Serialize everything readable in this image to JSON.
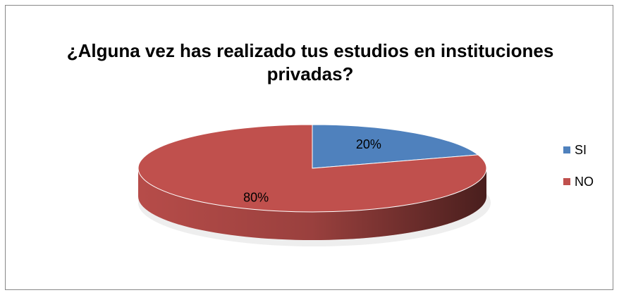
{
  "chart_data": {
    "type": "pie",
    "title": "¿Alguna vez has realizado tus estudios en instituciones privadas?",
    "categories": [
      "SI",
      "NO"
    ],
    "values": [
      20,
      80
    ],
    "value_labels": [
      "20%",
      "80%"
    ],
    "colors": [
      "#4f81bd",
      "#c0504d"
    ],
    "legend": "right"
  }
}
